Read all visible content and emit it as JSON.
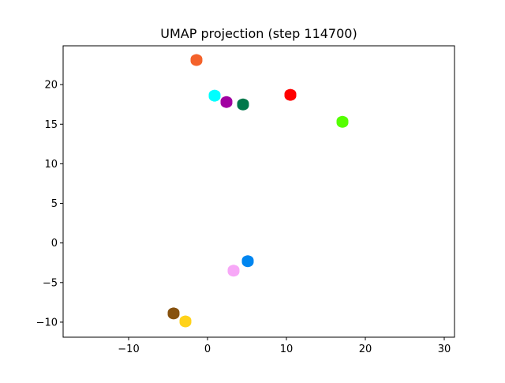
{
  "chart_data": {
    "type": "scatter",
    "title": "UMAP projection (step 114700)",
    "xlabel": "",
    "ylabel": "",
    "xlim": [
      -18.3,
      31.3
    ],
    "ylim": [
      -11.9,
      24.9
    ],
    "x_ticks": [
      -10,
      0,
      10,
      20,
      30
    ],
    "y_ticks": [
      -10,
      -5,
      0,
      5,
      10,
      15,
      20
    ],
    "x_tick_labels": [
      "−10",
      "0",
      "10",
      "20",
      "30"
    ],
    "y_tick_labels": [
      "−10",
      "−5",
      "0",
      "5",
      "10",
      "15",
      "20"
    ],
    "grid": false,
    "legend": "none",
    "clusters": [
      {
        "color": "#f4622b",
        "x": -1.4,
        "y": 23.1
      },
      {
        "color": "#00ffff",
        "x": 0.9,
        "y": 18.6
      },
      {
        "color": "#a100a1",
        "x": 2.4,
        "y": 17.8
      },
      {
        "color": "#00784a",
        "x": 4.5,
        "y": 17.5
      },
      {
        "color": "#ff0000",
        "x": 10.5,
        "y": 18.7
      },
      {
        "color": "#55ff00",
        "x": 17.1,
        "y": 15.3
      },
      {
        "color": "#0086f0",
        "x": 5.1,
        "y": -2.3
      },
      {
        "color": "#f7a8f7",
        "x": 3.3,
        "y": -3.5
      },
      {
        "color": "#87520f",
        "x": -4.3,
        "y": -8.9
      },
      {
        "color": "#ffd21a",
        "x": -2.8,
        "y": -9.9
      }
    ]
  }
}
